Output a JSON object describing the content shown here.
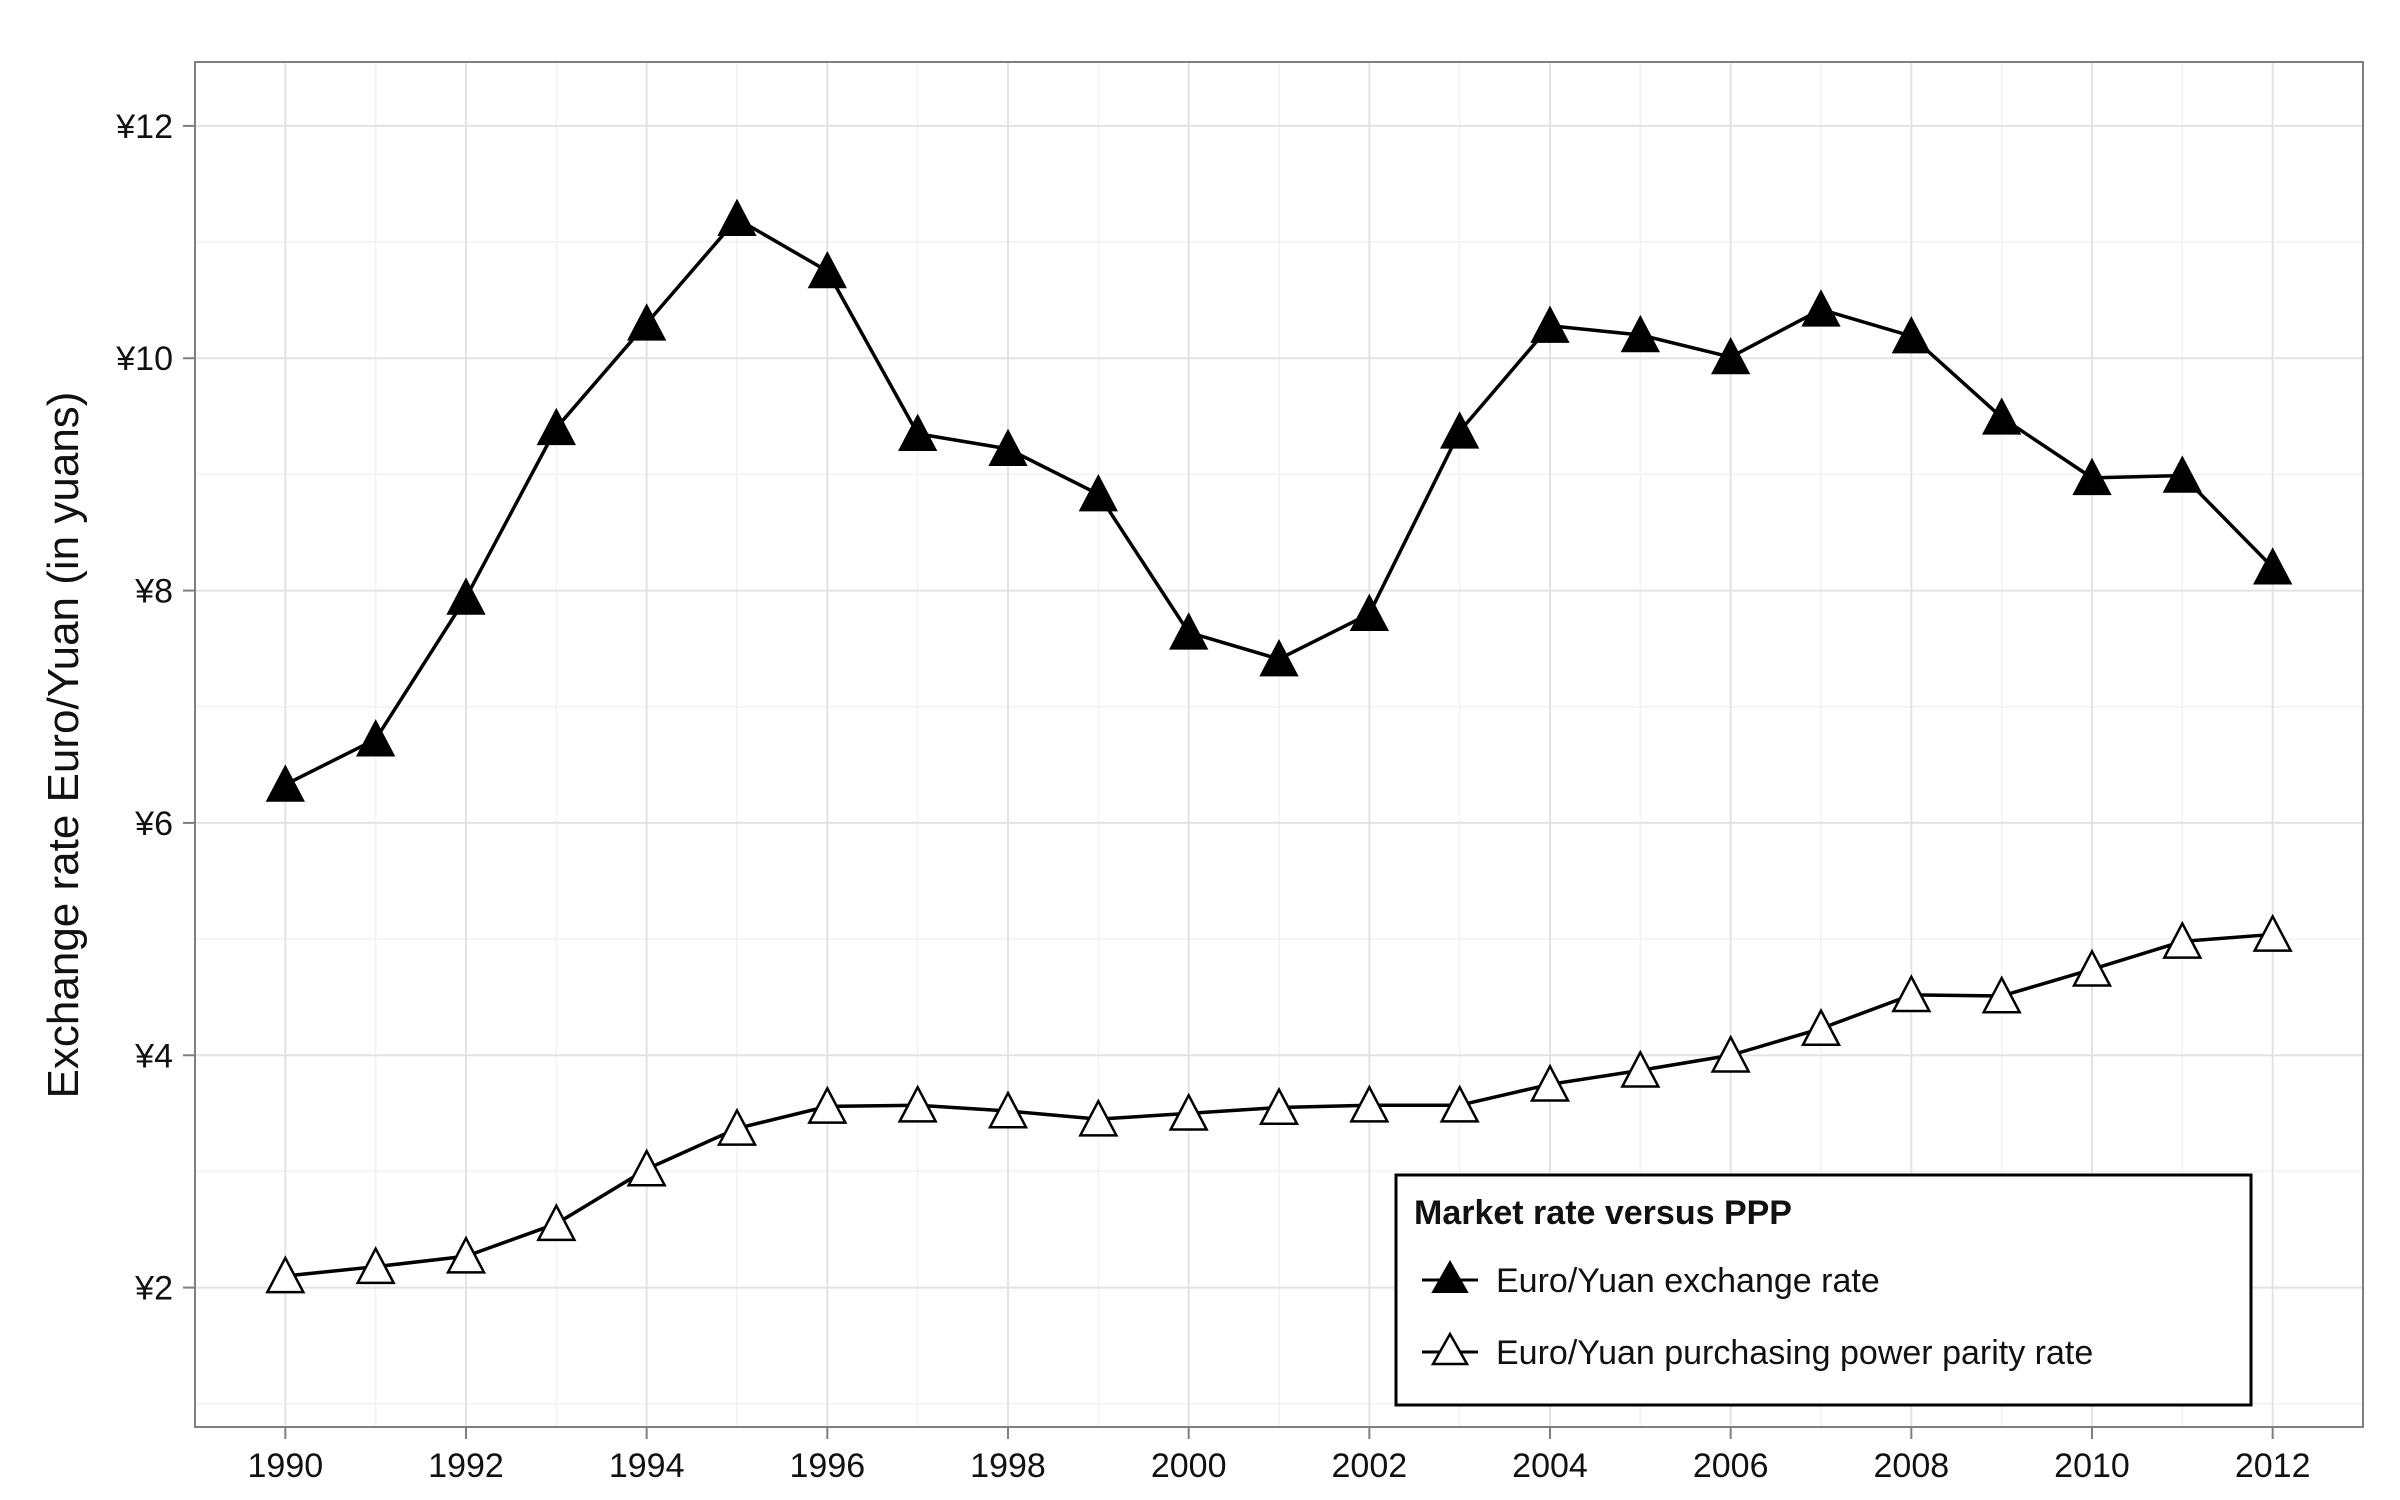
{
  "chart_data": {
    "type": "line",
    "title": "",
    "xlabel": "",
    "ylabel": "Exchange rate Euro/Yuan (in yuans)",
    "x": [
      1990,
      1991,
      1992,
      1993,
      1994,
      1995,
      1996,
      1997,
      1998,
      1999,
      2000,
      2001,
      2002,
      2003,
      2004,
      2005,
      2006,
      2007,
      2008,
      2009,
      2010,
      2011,
      2012
    ],
    "xlim": [
      1989,
      2013
    ],
    "ylim": [
      0.8,
      12.55
    ],
    "x_ticks": [
      1990,
      1992,
      1994,
      1996,
      1998,
      2000,
      2002,
      2004,
      2006,
      2008,
      2010,
      2012
    ],
    "y_ticks": [
      2,
      4,
      6,
      8,
      10,
      12
    ],
    "y_tick_labels": [
      "¥2",
      "¥4",
      "¥6",
      "¥8",
      "¥10",
      "¥12"
    ],
    "grid": true,
    "legend": {
      "title": "Market rate versus PPP",
      "position": "bottom-right"
    },
    "series": [
      {
        "name": "Euro/Yuan exchange rate",
        "marker": "filled-triangle",
        "color": "#000000",
        "values": [
          6.33,
          6.72,
          7.94,
          9.4,
          10.3,
          11.2,
          10.75,
          9.35,
          9.22,
          8.83,
          7.64,
          7.41,
          7.8,
          9.37,
          10.28,
          10.2,
          10.01,
          10.42,
          10.19,
          9.49,
          8.97,
          8.99,
          8.2
        ]
      },
      {
        "name": "Euro/Yuan purchasing power parity rate",
        "marker": "open-triangle",
        "color": "#000000",
        "values": [
          2.1,
          2.18,
          2.27,
          2.55,
          3.02,
          3.37,
          3.56,
          3.57,
          3.52,
          3.45,
          3.5,
          3.55,
          3.57,
          3.57,
          3.75,
          3.87,
          4.0,
          4.23,
          4.52,
          4.51,
          4.74,
          4.98,
          5.04
        ]
      }
    ]
  }
}
